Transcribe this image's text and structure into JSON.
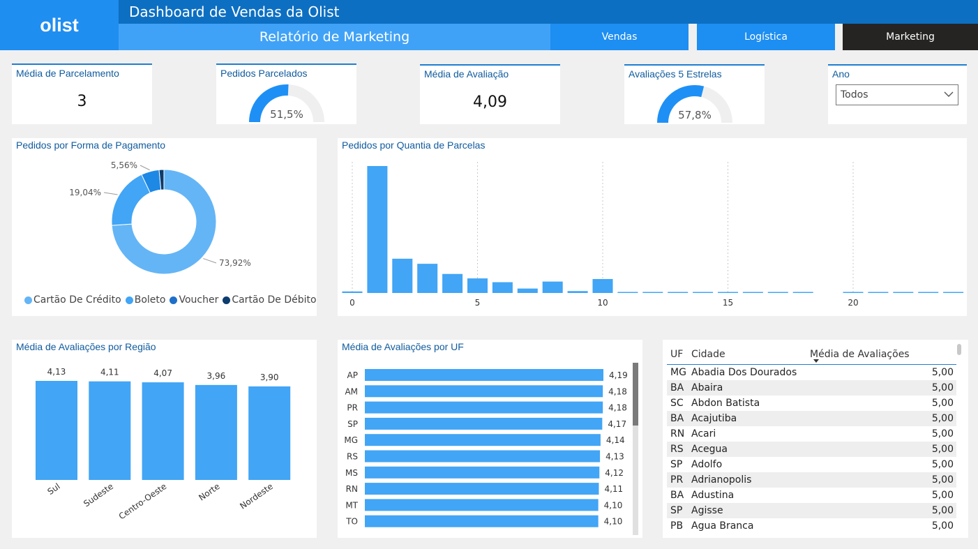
{
  "header": {
    "logo": "olist",
    "title": "Dashboard de Vendas da Olist",
    "subtitle": "Relatório de Marketing",
    "nav": [
      "Vendas",
      "Logística",
      "Marketing"
    ],
    "active_nav": "Marketing"
  },
  "kpis": {
    "parcelamento": {
      "title": "Média de Parcelamento",
      "value": "3"
    },
    "pedidos_parcelados": {
      "title": "Pedidos Parcelados",
      "value": "51,5%",
      "fraction": 0.515
    },
    "media_avaliacao": {
      "title": "Média de Avaliação",
      "value": "4,09"
    },
    "avaliacoes5": {
      "title": "Avaliações 5 Estrelas",
      "value": "57,8%",
      "fraction": 0.578
    }
  },
  "filter": {
    "title": "Ano",
    "selected": "Todos"
  },
  "colors": {
    "primary": "#42a5f5",
    "light": "#64b5f6",
    "mid": "#1e88e5",
    "dark": "#1565c0",
    "darker": "#0d47a1",
    "gauge_bg": "#efefef"
  },
  "chart_data": [
    {
      "id": "pagamento",
      "type": "pie",
      "title": "Pedidos por Forma de Pagamento",
      "categories": [
        "Cartão De Crédito",
        "Boleto",
        "Voucher",
        "Cartão De Débito"
      ],
      "values": [
        73.92,
        19.04,
        5.56,
        1.48
      ],
      "labels": [
        "73,92%",
        "19,04%",
        "5,56%",
        ""
      ],
      "colors": [
        "#64b5f6",
        "#42a5f5",
        "#1e88e5",
        "#0d3c6e"
      ]
    },
    {
      "id": "parcelas",
      "type": "bar",
      "title": "Pedidos por Quantia de Parcelas",
      "x": [
        0,
        1,
        2,
        3,
        4,
        5,
        6,
        7,
        8,
        9,
        10,
        11,
        12,
        13,
        14,
        15,
        16,
        17,
        18,
        19,
        20,
        21,
        22,
        23,
        24
      ],
      "values": [
        1.2,
        100,
        27,
        23,
        15,
        11.5,
        8.5,
        3.5,
        9,
        1.5,
        11,
        0.4,
        0.6,
        0.5,
        0.4,
        0.6,
        0.3,
        0.4,
        0.5,
        0,
        0.5,
        0.3,
        0.3,
        0.4,
        0.5
      ],
      "ticks": [
        0,
        5,
        10,
        15,
        20
      ],
      "xlabel": "",
      "ylabel": ""
    },
    {
      "id": "regiao",
      "type": "bar",
      "title": "Média de Avaliações por Região",
      "categories": [
        "Sul",
        "Sudeste",
        "Centro-Oeste",
        "Norte",
        "Nordeste"
      ],
      "values": [
        4.13,
        4.11,
        4.07,
        3.96,
        3.9
      ],
      "labels": [
        "4,13",
        "4,11",
        "4,07",
        "3,96",
        "3,90"
      ]
    },
    {
      "id": "uf",
      "type": "bar",
      "orientation": "horizontal",
      "title": "Média de Avaliações por UF",
      "categories": [
        "AP",
        "AM",
        "PR",
        "SP",
        "MG",
        "RS",
        "MS",
        "RN",
        "MT",
        "TO"
      ],
      "values": [
        4.19,
        4.18,
        4.18,
        4.17,
        4.14,
        4.13,
        4.12,
        4.11,
        4.1,
        4.1
      ],
      "labels": [
        "4,19",
        "4,18",
        "4,18",
        "4,17",
        "4,14",
        "4,13",
        "4,12",
        "4,11",
        "4,10",
        "4,10"
      ]
    }
  ],
  "table": {
    "columns": [
      "UF",
      "Cidade",
      "Média de Avaliações"
    ],
    "rows": [
      [
        "MG",
        "Abadia Dos Dourados",
        "5,00"
      ],
      [
        "BA",
        "Abaira",
        "5,00"
      ],
      [
        "SC",
        "Abdon Batista",
        "5,00"
      ],
      [
        "BA",
        "Acajutiba",
        "5,00"
      ],
      [
        "RN",
        "Acari",
        "5,00"
      ],
      [
        "RS",
        "Acegua",
        "5,00"
      ],
      [
        "SP",
        "Adolfo",
        "5,00"
      ],
      [
        "PR",
        "Adrianopolis",
        "5,00"
      ],
      [
        "BA",
        "Adustina",
        "5,00"
      ],
      [
        "SP",
        "Agisse",
        "5,00"
      ],
      [
        "PB",
        "Agua Branca",
        "5,00"
      ]
    ]
  }
}
